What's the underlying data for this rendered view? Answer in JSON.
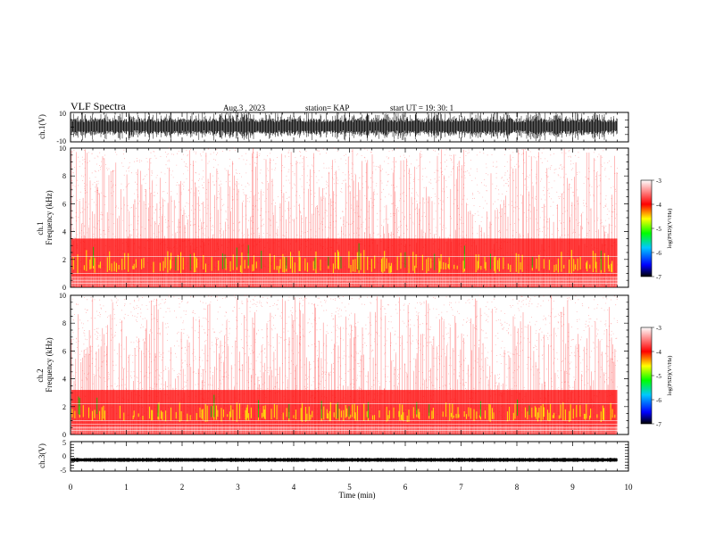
{
  "header": {
    "title": "VLF Spectra",
    "date": "Aug.3 , 2023",
    "station": "station= KAP",
    "start": "start UT = 19: 30: 1"
  },
  "colors": {
    "background": "#ffffff",
    "waveform": "#000000",
    "spectro_low": "#ff0000",
    "spectro_mid": "#ffff00",
    "spectro_high": "#00c000"
  },
  "chart_data": [
    {
      "type": "line",
      "panel": "ch1-waveform",
      "ylabel": "ch.1(V)",
      "ylim": [
        -10,
        10
      ],
      "yticks": [
        "10",
        "-10"
      ],
      "xlim": [
        0,
        10
      ],
      "description_source": "dense oscillating waveform, amplitude mostly within ±10 V"
    },
    {
      "type": "heatmap",
      "panel": "ch1-spectrogram",
      "ylabel_line1": "ch.1",
      "ylabel_line2": "Frequency (kHz)",
      "ylim": [
        0,
        10
      ],
      "yticks": [
        "0",
        "2",
        "4",
        "6",
        "8",
        "10"
      ],
      "xlim": [
        0,
        10
      ],
      "data_end_min": 9.8,
      "colorbar": {
        "label": "log(PSD)(V²/Hz)",
        "range": [
          -7,
          -3
        ],
        "ticks": [
          "-3",
          "-4",
          "-5",
          "-6",
          "-7"
        ]
      },
      "dense_band_khz": [
        0.7,
        3.5
      ],
      "peak_band_khz": [
        1.0,
        2.3
      ]
    },
    {
      "type": "heatmap",
      "panel": "ch2-spectrogram",
      "ylabel_line1": "ch.2",
      "ylabel_line2": "Frequency (kHz)",
      "ylim": [
        0,
        10
      ],
      "yticks": [
        "0",
        "2",
        "4",
        "6",
        "8",
        "10"
      ],
      "xlim": [
        0,
        10
      ],
      "data_end_min": 9.8,
      "colorbar": {
        "label": "log(PSD)(V²/Hz)",
        "range": [
          -7,
          -3
        ],
        "ticks": [
          "-3",
          "-4",
          "-5",
          "-6",
          "-7"
        ]
      },
      "dense_band_khz": [
        0.6,
        3.2
      ],
      "peak_band_khz": [
        0.9,
        2.0
      ]
    },
    {
      "type": "line",
      "panel": "ch3-waveform",
      "ylabel": "ch.3(V)",
      "ylim": [
        -5,
        5
      ],
      "yticks": [
        "5",
        "0",
        "-5"
      ],
      "xlim": [
        0,
        10
      ],
      "xlabel": "Time (min)",
      "xticks": [
        "0",
        "1",
        "2",
        "3",
        "4",
        "5",
        "6",
        "7",
        "8",
        "9",
        "10"
      ],
      "baseline_v": -1.2
    }
  ]
}
